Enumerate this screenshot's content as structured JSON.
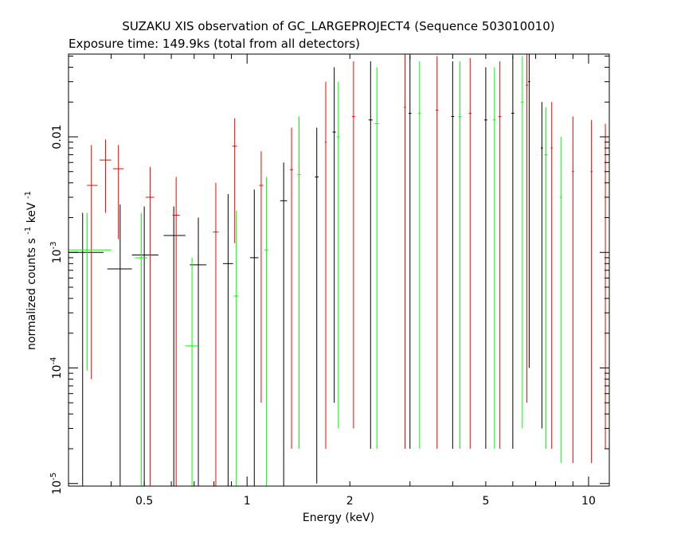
{
  "chart_data": {
    "type": "scatter",
    "title": "SUZAKU XIS observation of GC_LARGEPROJECT4 (Sequence 503010010)",
    "subtitle": "Exposure time: 149.9ks (total from all detectors)",
    "xlabel": "Energy (keV)",
    "ylabel": {
      "main": "normalized counts s",
      "exp1": "-1",
      "mid": " keV",
      "exp2": "-1"
    },
    "x_scale": "log",
    "y_scale": "log",
    "xlim": [
      0.3,
      11.5
    ],
    "ylim": [
      9.5e-06,
      0.052
    ],
    "x_ticks": [
      {
        "value": 0.5,
        "label": "0.5"
      },
      {
        "value": 1,
        "label": "1"
      },
      {
        "value": 2,
        "label": "2"
      },
      {
        "value": 5,
        "label": "5"
      },
      {
        "value": 10,
        "label": "10"
      }
    ],
    "y_ticks": [
      {
        "value": 1e-05,
        "base": "10",
        "exp": "-5"
      },
      {
        "value": 0.0001,
        "base": "10",
        "exp": "-4"
      },
      {
        "value": 0.001,
        "base": "10",
        "exp": "-3"
      },
      {
        "value": 0.01,
        "base": "0.01",
        "exp": ""
      }
    ],
    "legend": "none",
    "grid": false,
    "series": [
      {
        "color": "#000000",
        "points": [
          {
            "x": 0.33,
            "xlo": 0.3,
            "xhi": 0.38,
            "y": 0.001,
            "ylo": 9.5e-06,
            "yhi": 0.0022
          },
          {
            "x": 0.425,
            "xlo": 0.39,
            "xhi": 0.46,
            "y": 0.00072,
            "ylo": 9.5e-06,
            "yhi": 0.0026
          },
          {
            "x": 0.5,
            "xlo": 0.46,
            "xhi": 0.55,
            "y": 0.00095,
            "ylo": 9.5e-06,
            "yhi": 0.0025
          },
          {
            "x": 0.61,
            "xlo": 0.57,
            "xhi": 0.66,
            "y": 0.0014,
            "ylo": 9.5e-06,
            "yhi": 0.0025
          },
          {
            "x": 0.72,
            "xlo": 0.68,
            "xhi": 0.76,
            "y": 0.00078,
            "ylo": 9.5e-06,
            "yhi": 0.002
          },
          {
            "x": 0.88,
            "xlo": 0.85,
            "xhi": 0.91,
            "y": 0.0008,
            "ylo": 9.5e-06,
            "yhi": 0.0032
          },
          {
            "x": 1.05,
            "xlo": 1.02,
            "xhi": 1.08,
            "y": 0.0009,
            "ylo": 9.5e-06,
            "yhi": 0.0035
          },
          {
            "x": 1.28,
            "xlo": 1.25,
            "xhi": 1.31,
            "y": 0.0028,
            "ylo": 9.5e-06,
            "yhi": 0.006
          },
          {
            "x": 1.6,
            "xlo": 1.58,
            "xhi": 1.62,
            "y": 0.0045,
            "ylo": 1e-05,
            "yhi": 0.012
          },
          {
            "x": 1.8,
            "xlo": 1.78,
            "xhi": 1.82,
            "y": 0.011,
            "ylo": 5e-05,
            "yhi": 0.04
          },
          {
            "x": 2.3,
            "xlo": 2.27,
            "xhi": 2.33,
            "y": 0.014,
            "ylo": 2e-05,
            "yhi": 0.045
          },
          {
            "x": 3.0,
            "xlo": 2.97,
            "xhi": 3.03,
            "y": 0.016,
            "ylo": 2e-05,
            "yhi": 0.05
          },
          {
            "x": 4.0,
            "xlo": 3.96,
            "xhi": 4.04,
            "y": 0.015,
            "ylo": 2e-05,
            "yhi": 0.045
          },
          {
            "x": 5.0,
            "xlo": 4.95,
            "xhi": 5.05,
            "y": 0.014,
            "ylo": 2e-05,
            "yhi": 0.04
          },
          {
            "x": 6.0,
            "xlo": 5.94,
            "xhi": 6.06,
            "y": 0.016,
            "ylo": 2e-05,
            "yhi": 0.05
          },
          {
            "x": 6.7,
            "xlo": 6.65,
            "xhi": 6.75,
            "y": 0.03,
            "ylo": 0.0001,
            "yhi": 0.052
          },
          {
            "x": 7.3,
            "xlo": 7.25,
            "xhi": 7.35,
            "y": 0.008,
            "ylo": 3e-05,
            "yhi": 0.02
          }
        ]
      },
      {
        "color": "#ff0000",
        "points": [
          {
            "x": 0.35,
            "xlo": 0.34,
            "xhi": 0.365,
            "y": 0.0038,
            "ylo": 8e-05,
            "yhi": 0.0085
          },
          {
            "x": 0.385,
            "xlo": 0.37,
            "xhi": 0.4,
            "y": 0.0063,
            "ylo": 0.0022,
            "yhi": 0.0095
          },
          {
            "x": 0.42,
            "xlo": 0.405,
            "xhi": 0.435,
            "y": 0.0053,
            "ylo": 0.0013,
            "yhi": 0.0085
          },
          {
            "x": 0.52,
            "xlo": 0.505,
            "xhi": 0.535,
            "y": 0.003,
            "ylo": 9.5e-06,
            "yhi": 0.0055
          },
          {
            "x": 0.62,
            "xlo": 0.605,
            "xhi": 0.635,
            "y": 0.0021,
            "ylo": 9.5e-06,
            "yhi": 0.0045
          },
          {
            "x": 0.81,
            "xlo": 0.795,
            "xhi": 0.825,
            "y": 0.0015,
            "ylo": 9.5e-06,
            "yhi": 0.004
          },
          {
            "x": 0.92,
            "xlo": 0.905,
            "xhi": 0.935,
            "y": 0.0083,
            "ylo": 0.0012,
            "yhi": 0.0145
          },
          {
            "x": 1.1,
            "xlo": 1.085,
            "xhi": 1.115,
            "y": 0.0038,
            "ylo": 5e-05,
            "yhi": 0.0075
          },
          {
            "x": 1.35,
            "xlo": 1.335,
            "xhi": 1.365,
            "y": 0.0052,
            "ylo": 2e-05,
            "yhi": 0.012
          },
          {
            "x": 1.7,
            "xlo": 1.69,
            "xhi": 1.71,
            "y": 0.009,
            "ylo": 2e-05,
            "yhi": 0.03
          },
          {
            "x": 2.05,
            "xlo": 2.03,
            "xhi": 2.07,
            "y": 0.015,
            "ylo": 3e-05,
            "yhi": 0.045
          },
          {
            "x": 2.9,
            "xlo": 2.88,
            "xhi": 2.92,
            "y": 0.018,
            "ylo": 2e-05,
            "yhi": 0.052
          },
          {
            "x": 3.6,
            "xlo": 3.57,
            "xhi": 3.63,
            "y": 0.017,
            "ylo": 2e-05,
            "yhi": 0.05
          },
          {
            "x": 4.5,
            "xlo": 4.46,
            "xhi": 4.54,
            "y": 0.016,
            "ylo": 2e-05,
            "yhi": 0.048
          },
          {
            "x": 5.5,
            "xlo": 5.45,
            "xhi": 5.55,
            "y": 0.015,
            "ylo": 2e-05,
            "yhi": 0.045
          },
          {
            "x": 6.6,
            "xlo": 6.55,
            "xhi": 6.65,
            "y": 0.028,
            "ylo": 5e-05,
            "yhi": 0.052
          },
          {
            "x": 7.8,
            "xlo": 7.75,
            "xhi": 7.85,
            "y": 0.008,
            "ylo": 2e-05,
            "yhi": 0.02
          },
          {
            "x": 9.0,
            "xlo": 8.94,
            "xhi": 9.06,
            "y": 0.005,
            "ylo": 1.5e-05,
            "yhi": 0.015
          },
          {
            "x": 10.2,
            "xlo": 10.13,
            "xhi": 10.27,
            "y": 0.005,
            "ylo": 1.5e-05,
            "yhi": 0.014
          },
          {
            "x": 11.2,
            "xlo": 11.15,
            "xhi": 11.25,
            "y": 0.006,
            "ylo": 2e-05,
            "yhi": 0.013
          }
        ]
      },
      {
        "color": "#00ff00",
        "points": [
          {
            "x": 0.34,
            "xlo": 0.3,
            "xhi": 0.4,
            "y": 0.00105,
            "ylo": 9.5e-05,
            "yhi": 0.0022
          },
          {
            "x": 0.49,
            "xlo": 0.47,
            "xhi": 0.51,
            "y": 0.0009,
            "ylo": 9.5e-06,
            "yhi": 0.0022
          },
          {
            "x": 0.69,
            "xlo": 0.66,
            "xhi": 0.72,
            "y": 0.000155,
            "ylo": 9.5e-06,
            "yhi": 0.0009
          },
          {
            "x": 0.93,
            "xlo": 0.915,
            "xhi": 0.945,
            "y": 0.00042,
            "ylo": 9.5e-06,
            "yhi": 0.0023
          },
          {
            "x": 1.14,
            "xlo": 1.125,
            "xhi": 1.155,
            "y": 0.00105,
            "ylo": 9.5e-06,
            "yhi": 0.0045
          },
          {
            "x": 1.42,
            "xlo": 1.405,
            "xhi": 1.435,
            "y": 0.0047,
            "ylo": 2e-05,
            "yhi": 0.015
          },
          {
            "x": 1.85,
            "xlo": 1.83,
            "xhi": 1.87,
            "y": 0.01,
            "ylo": 3e-05,
            "yhi": 0.03
          },
          {
            "x": 2.4,
            "xlo": 2.37,
            "xhi": 2.43,
            "y": 0.013,
            "ylo": 2e-05,
            "yhi": 0.04
          },
          {
            "x": 3.2,
            "xlo": 3.17,
            "xhi": 3.23,
            "y": 0.016,
            "ylo": 2e-05,
            "yhi": 0.045
          },
          {
            "x": 4.2,
            "xlo": 4.16,
            "xhi": 4.24,
            "y": 0.015,
            "ylo": 2e-05,
            "yhi": 0.045
          },
          {
            "x": 5.3,
            "xlo": 5.25,
            "xhi": 5.35,
            "y": 0.014,
            "ylo": 2e-05,
            "yhi": 0.04
          },
          {
            "x": 6.4,
            "xlo": 6.34,
            "xhi": 6.46,
            "y": 0.02,
            "ylo": 3e-05,
            "yhi": 0.05
          },
          {
            "x": 7.5,
            "xlo": 7.44,
            "xhi": 7.56,
            "y": 0.007,
            "ylo": 2e-05,
            "yhi": 0.018
          },
          {
            "x": 8.3,
            "xlo": 8.24,
            "xhi": 8.36,
            "y": 0.003,
            "ylo": 1.5e-05,
            "yhi": 0.01
          }
        ]
      }
    ]
  }
}
